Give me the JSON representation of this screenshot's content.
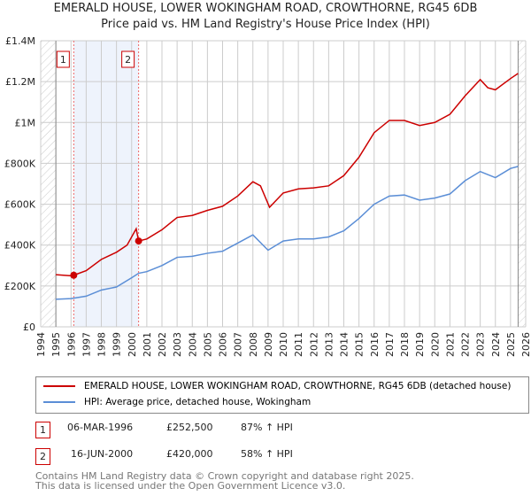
{
  "title": "EMERALD HOUSE, LOWER WOKINGHAM ROAD, CROWTHORNE, RG45 6DB",
  "subtitle": "Price paid vs. HM Land Registry's House Price Index (HPI)",
  "chart_data": {
    "type": "line",
    "xlim": [
      1994,
      2026
    ],
    "ylim": [
      0,
      1400000
    ],
    "yticks": [
      {
        "v": 0,
        "label": "£0"
      },
      {
        "v": 200000,
        "label": "£200K"
      },
      {
        "v": 400000,
        "label": "£400K"
      },
      {
        "v": 600000,
        "label": "£600K"
      },
      {
        "v": 800000,
        "label": "£800K"
      },
      {
        "v": 1000000,
        "label": "£1M"
      },
      {
        "v": 1200000,
        "label": "£1.2M"
      },
      {
        "v": 1400000,
        "label": "£1.4M"
      }
    ],
    "xticks": [
      "1994",
      "1995",
      "1996",
      "1997",
      "1998",
      "1999",
      "2000",
      "2001",
      "2002",
      "2003",
      "2004",
      "2005",
      "2006",
      "2007",
      "2008",
      "2009",
      "2010",
      "2011",
      "2012",
      "2013",
      "2014",
      "2015",
      "2016",
      "2017",
      "2018",
      "2019",
      "2020",
      "2021",
      "2022",
      "2023",
      "2024",
      "2025",
      "2026"
    ],
    "series": [
      {
        "name": "EMERALD HOUSE, LOWER WOKINGHAM ROAD, CROWTHORNE, RG45 6DB (detached house)",
        "color": "#cc0000",
        "x": [
          1995,
          1996,
          1996.18,
          1997,
          1998,
          1999,
          1999.7,
          2000.3,
          2000.46,
          2001,
          2002,
          2003,
          2004,
          2005,
          2006,
          2007,
          2008,
          2008.5,
          2009.1,
          2010,
          2011,
          2012,
          2013,
          2014,
          2015,
          2016,
          2017,
          2018,
          2019,
          2020,
          2021,
          2022,
          2023,
          2023.5,
          2024,
          2025,
          2025.5
        ],
        "y": [
          255000,
          250000,
          252500,
          275000,
          330000,
          365000,
          400000,
          480000,
          420000,
          430000,
          475000,
          535000,
          545000,
          570000,
          590000,
          640000,
          710000,
          690000,
          585000,
          655000,
          675000,
          680000,
          690000,
          740000,
          830000,
          950000,
          1010000,
          1010000,
          985000,
          1000000,
          1040000,
          1130000,
          1210000,
          1170000,
          1160000,
          1215000,
          1240000
        ]
      },
      {
        "name": "HPI: Average price, detached house, Wokingham",
        "color": "#5b8ed6",
        "x": [
          1995,
          1996,
          1997,
          1998,
          1999,
          2000,
          2000.46,
          2001,
          2002,
          2003,
          2004,
          2005,
          2006,
          2007,
          2008,
          2009,
          2010,
          2011,
          2012,
          2013,
          2014,
          2015,
          2016,
          2017,
          2018,
          2019,
          2020,
          2021,
          2022,
          2023,
          2024,
          2025,
          2025.5
        ],
        "y": [
          135000,
          138000,
          150000,
          180000,
          195000,
          240000,
          262000,
          270000,
          300000,
          340000,
          345000,
          360000,
          370000,
          410000,
          450000,
          375000,
          420000,
          430000,
          430000,
          440000,
          470000,
          530000,
          600000,
          640000,
          645000,
          620000,
          630000,
          650000,
          715000,
          760000,
          730000,
          775000,
          785000
        ]
      }
    ],
    "sales": [
      {
        "id": "1",
        "x": 1996.18,
        "y": 252500,
        "date": "06-MAR-1996",
        "price": "£252,500",
        "hpi": "87% ↑ HPI"
      },
      {
        "id": "2",
        "x": 2000.46,
        "y": 420000,
        "date": "16-JUN-2000",
        "price": "£420,000",
        "hpi": "58% ↑ HPI"
      }
    ]
  },
  "legend": {
    "red": "EMERALD HOUSE, LOWER WOKINGHAM ROAD, CROWTHORNE, RG45 6DB (detached house)",
    "blue": "HPI: Average price, detached house, Wokingham"
  },
  "footer": {
    "line1": "Contains HM Land Registry data © Crown copyright and database right 2025.",
    "line2": "This data is licensed under the Open Government Licence v3.0."
  }
}
